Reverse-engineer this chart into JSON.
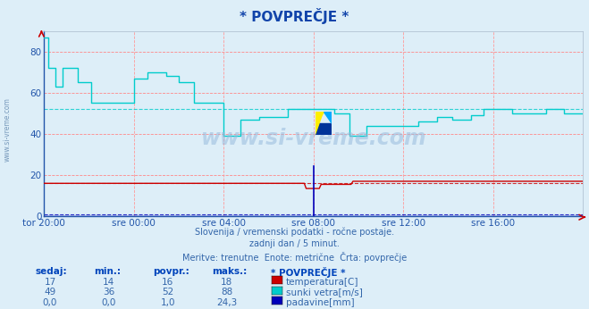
{
  "title": "* POVPREČJE *",
  "background_color": "#ddeef8",
  "plot_bg_color": "#ddeef8",
  "grid_color_h": "#ff8888",
  "grid_color_v": "#ff9999",
  "xlabel_color": "#2255aa",
  "ylabel_color": "#2255aa",
  "subtitle_lines": [
    "Slovenija / vremenski podatki - ročne postaje.",
    "zadnji dan / 5 minut.",
    "Meritve: trenutne  Enote: metrične  Črta: povprečje"
  ],
  "xticklabels": [
    "tor 20:00",
    "sre 00:00",
    "sre 04:00",
    "sre 08:00",
    "sre 12:00",
    "sre 16:00"
  ],
  "xtick_positions": [
    0,
    48,
    96,
    144,
    192,
    240
  ],
  "total_points": 289,
  "ylim": [
    0,
    90
  ],
  "yticks": [
    0,
    20,
    40,
    60,
    80
  ],
  "temp_color": "#cc0000",
  "wind_color": "#00cccc",
  "padavine_color": "#0000bb",
  "avg_temp": 16,
  "avg_wind": 52,
  "avg_padavine": 1.0,
  "legend_title": "* POVPREČJE *",
  "table_headers": [
    "sedaj:",
    "min.:",
    "povpr.:",
    "maks.:"
  ],
  "table_data": [
    {
      "sedaj": "17",
      "min": "14",
      "povpr": "16",
      "maks": "18",
      "label": "temperatura[C]",
      "color": "#cc0000"
    },
    {
      "sedaj": "49",
      "min": "36",
      "povpr": "52",
      "maks": "88",
      "label": "sunki vetra[m/s]",
      "color": "#00cccc"
    },
    {
      "sedaj": "0,0",
      "min": "0,0",
      "povpr": "1,0",
      "maks": "24,3",
      "label": "padavine[mm]",
      "color": "#0000bb"
    }
  ],
  "left_text": "www.si-vreme.com",
  "left_text_color": "#7799bb",
  "title_color": "#1144aa",
  "watermark_color": "#99bbdd",
  "subtitle_color": "#3366aa"
}
